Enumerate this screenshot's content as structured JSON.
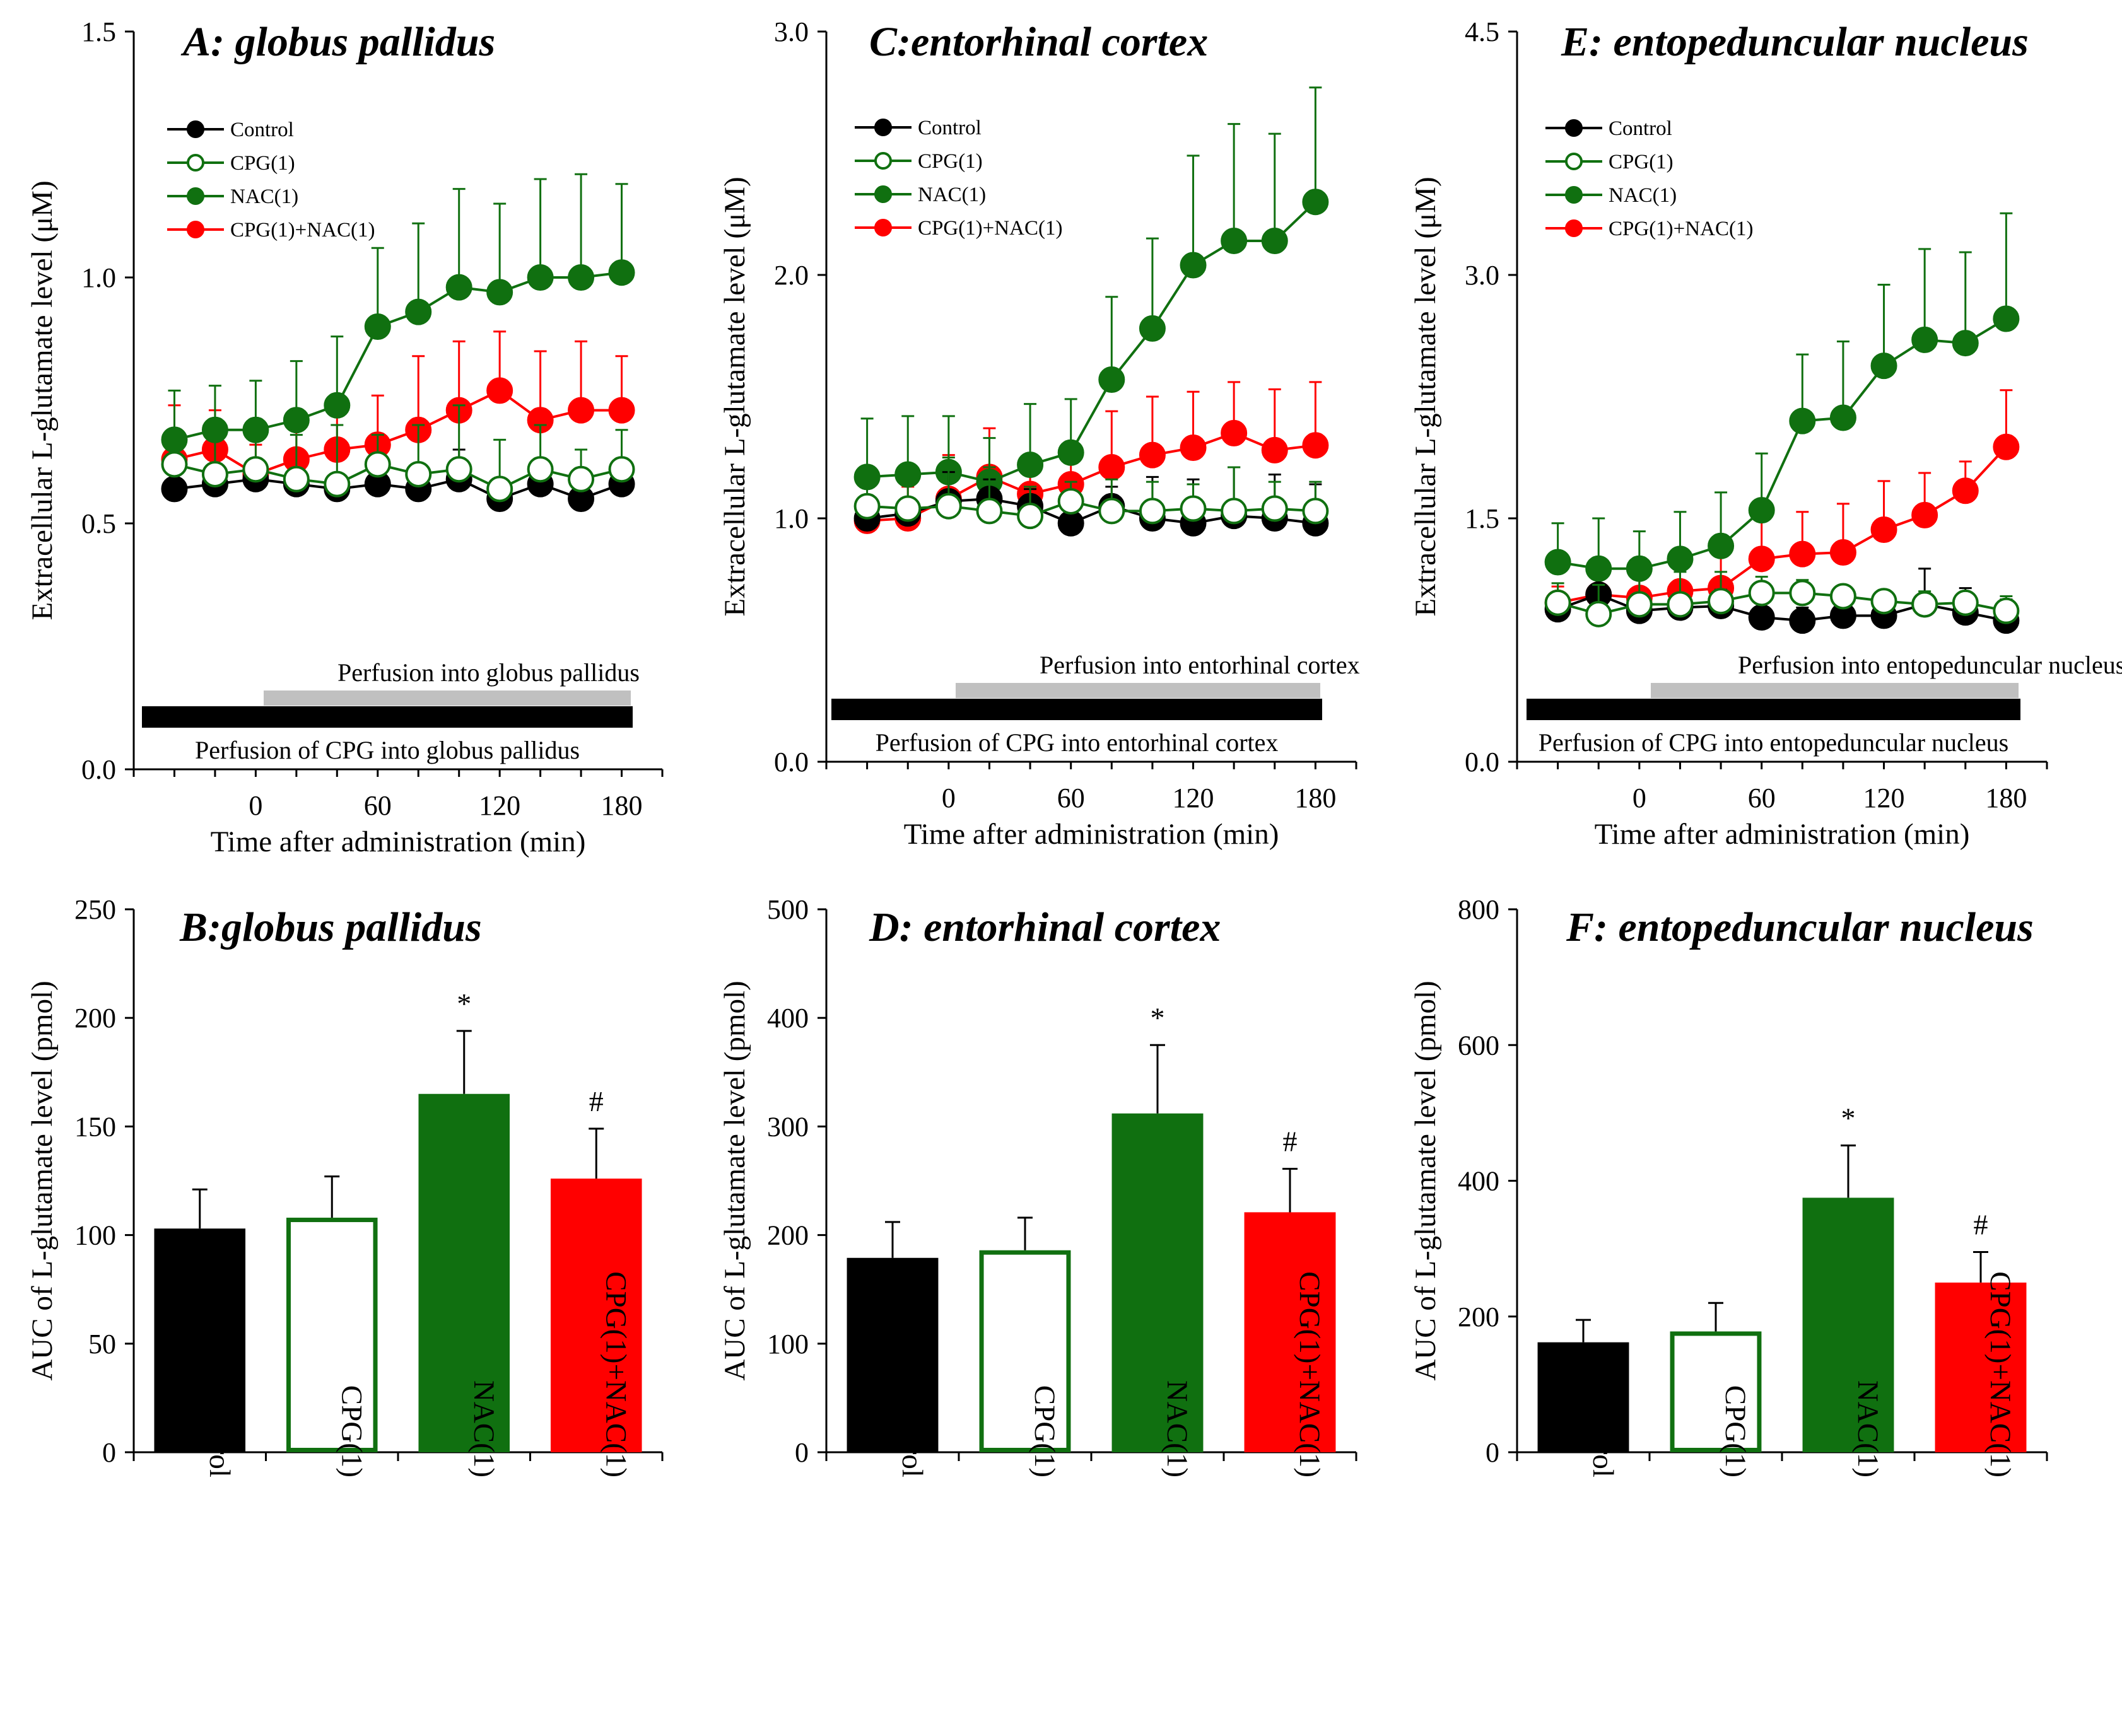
{
  "chart_data": [
    {
      "panel": "A",
      "type": "line",
      "title": "A: globus pallidus",
      "xlabel": "Time after administration (min)",
      "ylabel": "Extracellular L-glutamate level (μM)",
      "ylim": [
        0,
        1.5
      ],
      "yticks": [
        "0.0",
        "0.5",
        "1.0",
        "1.5"
      ],
      "xticks": [
        "0",
        "60",
        "120",
        "180"
      ],
      "xlim": [
        -60,
        200
      ],
      "x": [
        -40,
        -20,
        0,
        20,
        40,
        60,
        80,
        100,
        120,
        140,
        160,
        180
      ],
      "perfusion_upper": "Perfusion into globus pallidus",
      "perfusion_lower": "Perfusion of CPG into globus pallidus",
      "series": [
        {
          "name": "Control",
          "color": "#000000",
          "marker": "filled",
          "values": [
            0.57,
            0.58,
            0.59,
            0.58,
            0.57,
            0.58,
            0.57,
            0.59,
            0.55,
            0.58,
            0.55,
            0.58
          ],
          "err": [
            0.02,
            0.02,
            0.03,
            0.03,
            0.02,
            0.06,
            0.04,
            0.06,
            0.03,
            0.05,
            0.03,
            0.04
          ]
        },
        {
          "name": "CPG(1)",
          "color": "#107010",
          "marker": "open",
          "values": [
            0.62,
            0.6,
            0.61,
            0.59,
            0.58,
            0.62,
            0.6,
            0.61,
            0.57,
            0.61,
            0.59,
            0.61
          ],
          "err": [
            0.05,
            0.08,
            0.08,
            0.09,
            0.12,
            0.06,
            0.1,
            0.13,
            0.1,
            0.09,
            0.06,
            0.08
          ]
        },
        {
          "name": "NAC(1)",
          "color": "#107010",
          "marker": "filled",
          "values": [
            0.67,
            0.69,
            0.69,
            0.71,
            0.74,
            0.9,
            0.93,
            0.98,
            0.97,
            1.0,
            1.0,
            1.01
          ],
          "err": [
            0.1,
            0.09,
            0.1,
            0.12,
            0.14,
            0.16,
            0.18,
            0.2,
            0.18,
            0.2,
            0.21,
            0.18
          ]
        },
        {
          "name": "CPG(1)+NAC(1)",
          "color": "#ff0000",
          "marker": "filled",
          "values": [
            0.63,
            0.65,
            0.6,
            0.63,
            0.65,
            0.66,
            0.69,
            0.73,
            0.77,
            0.71,
            0.73,
            0.73
          ],
          "err": [
            0.11,
            0.08,
            0.06,
            0.07,
            0.1,
            0.1,
            0.15,
            0.14,
            0.12,
            0.14,
            0.14,
            0.11
          ]
        }
      ]
    },
    {
      "panel": "C",
      "type": "line",
      "title": "C:entorhinal cortex",
      "xlabel": "Time after administration (min)",
      "ylabel": "Extracellular L-glutamate level (μM)",
      "ylim": [
        0,
        3.0
      ],
      "yticks": [
        "0.0",
        "1.0",
        "2.0",
        "3.0"
      ],
      "xticks": [
        "0",
        "60",
        "120",
        "180"
      ],
      "xlim": [
        -60,
        200
      ],
      "x": [
        -40,
        -20,
        0,
        20,
        40,
        60,
        80,
        100,
        120,
        140,
        160,
        180
      ],
      "perfusion_upper": "Perfusion into entorhinal cortex",
      "perfusion_lower": "Perfusion of CPG into entorhinal cortex",
      "series": [
        {
          "name": "Control",
          "color": "#000000",
          "marker": "filled",
          "values": [
            1.0,
            1.02,
            1.07,
            1.08,
            1.05,
            0.98,
            1.05,
            1.0,
            0.98,
            1.01,
            1.0,
            0.98
          ],
          "err": [
            0.05,
            0.06,
            0.12,
            0.08,
            0.07,
            0.06,
            0.08,
            0.17,
            0.18,
            0.2,
            0.18,
            0.16
          ]
        },
        {
          "name": "CPG(1)",
          "color": "#107010",
          "marker": "open",
          "values": [
            1.05,
            1.04,
            1.05,
            1.03,
            1.01,
            1.07,
            1.03,
            1.03,
            1.04,
            1.03,
            1.04,
            1.03
          ],
          "err": [
            0.12,
            0.16,
            0.2,
            0.18,
            0.12,
            0.08,
            0.13,
            0.12,
            0.1,
            0.18,
            0.11,
            0.12
          ]
        },
        {
          "name": "NAC(1)",
          "color": "#107010",
          "marker": "filled",
          "values": [
            1.17,
            1.18,
            1.19,
            1.15,
            1.22,
            1.27,
            1.57,
            1.78,
            2.04,
            2.14,
            2.14,
            2.3
          ],
          "err": [
            0.24,
            0.24,
            0.23,
            0.18,
            0.25,
            0.22,
            0.34,
            0.37,
            0.45,
            0.48,
            0.44,
            0.47
          ]
        },
        {
          "name": "CPG(1)+NAC(1)",
          "color": "#ff0000",
          "marker": "filled",
          "values": [
            0.99,
            1.0,
            1.08,
            1.17,
            1.1,
            1.14,
            1.21,
            1.26,
            1.29,
            1.35,
            1.28,
            1.3
          ],
          "err": [
            0.1,
            0.13,
            0.18,
            0.2,
            0.15,
            0.16,
            0.23,
            0.24,
            0.23,
            0.21,
            0.25,
            0.26
          ]
        }
      ]
    },
    {
      "panel": "E",
      "type": "line",
      "title": "E: entopeduncular nucleus",
      "xlabel": "Time after administration (min)",
      "ylabel": "Extracellular L-glutamate level (μM)",
      "ylim": [
        0,
        4.5
      ],
      "yticks": [
        "0.0",
        "1.5",
        "3.0",
        "4.5"
      ],
      "xticks": [
        "0",
        "60",
        "120",
        "180"
      ],
      "xlim": [
        -60,
        200
      ],
      "x": [
        -40,
        -20,
        0,
        20,
        40,
        60,
        80,
        100,
        120,
        140,
        160,
        180
      ],
      "perfusion_upper": "Perfusion into entopeduncular nucleus",
      "perfusion_lower": "Perfusion of CPG into entopeduncular nucleus",
      "series": [
        {
          "name": "Control",
          "color": "#000000",
          "marker": "filled",
          "values": [
            0.94,
            1.03,
            0.93,
            0.95,
            0.96,
            0.89,
            0.87,
            0.9,
            0.9,
            0.97,
            0.92,
            0.87
          ],
          "err": [
            0.05,
            0.06,
            0.08,
            0.08,
            0.1,
            0.1,
            0.08,
            0.1,
            0.1,
            0.22,
            0.15,
            0.13
          ]
        },
        {
          "name": "CPG(1)",
          "color": "#107010",
          "marker": "open",
          "values": [
            0.98,
            0.91,
            0.97,
            0.97,
            0.99,
            1.04,
            1.04,
            1.02,
            0.99,
            0.97,
            0.98,
            0.93
          ],
          "err": [
            0.12,
            0.18,
            0.18,
            0.2,
            0.18,
            0.1,
            0.08,
            0.06,
            0.05,
            0.08,
            0.06,
            0.09
          ]
        },
        {
          "name": "NAC(1)",
          "color": "#107010",
          "marker": "filled",
          "values": [
            1.23,
            1.19,
            1.19,
            1.25,
            1.33,
            1.55,
            2.1,
            2.12,
            2.44,
            2.6,
            2.58,
            2.73
          ],
          "err": [
            0.24,
            0.31,
            0.23,
            0.29,
            0.33,
            0.35,
            0.41,
            0.47,
            0.5,
            0.56,
            0.56,
            0.65
          ]
        },
        {
          "name": "CPG(1)+NAC(1)",
          "color": "#ff0000",
          "marker": "filled",
          "values": [
            0.98,
            1.03,
            1.01,
            1.05,
            1.07,
            1.25,
            1.28,
            1.29,
            1.43,
            1.52,
            1.67,
            1.94
          ],
          "err": [
            0.1,
            0.15,
            0.14,
            0.15,
            0.23,
            0.25,
            0.26,
            0.3,
            0.3,
            0.26,
            0.18,
            0.35
          ]
        }
      ]
    },
    {
      "panel": "B",
      "type": "bar",
      "title": "B:globus pallidus",
      "xlabel": "",
      "ylabel": "AUC of L-glutamate level (pmol)",
      "ylim": [
        0,
        250
      ],
      "yticks": [
        "0",
        "50",
        "100",
        "150",
        "200",
        "250"
      ],
      "categories": [
        "Control",
        "CPG(1)",
        "NAC(1)",
        "CPG(1)+NAC(1)"
      ],
      "values": [
        103,
        108,
        165,
        126
      ],
      "err": [
        18,
        19,
        29,
        23
      ],
      "sig": [
        "",
        "",
        "*",
        "#"
      ],
      "fill": [
        "#000000",
        "#ffffff",
        "#107010",
        "#ff0000"
      ],
      "stroke": [
        "#000000",
        "#107010",
        "#107010",
        "#ff0000"
      ]
    },
    {
      "panel": "D",
      "type": "bar",
      "title": "D: entorhinal cortex",
      "xlabel": "",
      "ylabel": "AUC of L-glutamate level (pmol)",
      "ylim": [
        0,
        500
      ],
      "yticks": [
        "0",
        "100",
        "200",
        "300",
        "400",
        "500"
      ],
      "categories": [
        "Control",
        "CPG(1)",
        "NAC(1)",
        "CPG(1)+NAC(1)"
      ],
      "values": [
        179,
        186,
        312,
        221
      ],
      "err": [
        33,
        30,
        63,
        40
      ],
      "sig": [
        "",
        "",
        "*",
        "#"
      ],
      "fill": [
        "#000000",
        "#ffffff",
        "#107010",
        "#ff0000"
      ],
      "stroke": [
        "#000000",
        "#107010",
        "#107010",
        "#ff0000"
      ]
    },
    {
      "panel": "F",
      "type": "bar",
      "title": "F: entopeduncular nucleus",
      "xlabel": "",
      "ylabel": "AUC of L-glutamate level (pmol)",
      "ylim": [
        0,
        800
      ],
      "yticks": [
        "0",
        "200",
        "400",
        "600",
        "800"
      ],
      "categories": [
        "Control",
        "CPG(1)",
        "NAC(1)",
        "CPG(1)+NAC(1)"
      ],
      "values": [
        162,
        178,
        375,
        250
      ],
      "err": [
        33,
        42,
        77,
        45
      ],
      "sig": [
        "",
        "",
        "*",
        "#"
      ],
      "fill": [
        "#000000",
        "#ffffff",
        "#107010",
        "#ff0000"
      ],
      "stroke": [
        "#000000",
        "#107010",
        "#107010",
        "#ff0000"
      ]
    }
  ]
}
